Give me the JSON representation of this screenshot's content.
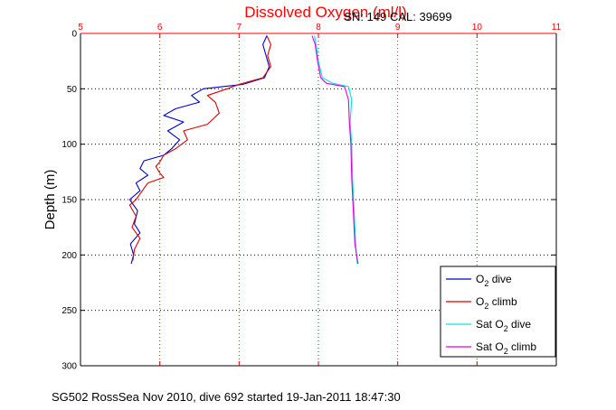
{
  "chart_data": {
    "type": "line",
    "title": "Dissolved Oxygen (ml/l)",
    "subtitle": "SN: 149  CAL: 39699",
    "ylabel": "Depth (m)",
    "footer": "SG502 RossSea Nov 2010, dive 692 started 19-Jan-2011 18:47:30",
    "xlim": [
      5,
      11
    ],
    "ylim": [
      0,
      300
    ],
    "y_reversed": true,
    "x_ticks": [
      "5",
      "6",
      "7",
      "8",
      "9",
      "10",
      "11"
    ],
    "y_ticks": [
      "0",
      "50",
      "100",
      "150",
      "200",
      "250",
      "300"
    ],
    "x_axis_position": "top",
    "grid": true,
    "legend_position": "bottom-right",
    "colors": {
      "title": "#ff0000",
      "x_axis": "#ff0000",
      "y_axis": "#000000",
      "grid": "#ff0000"
    },
    "series": [
      {
        "name": "O2 dive",
        "label_main": "O",
        "label_sub": "2",
        "label_suffix": " dive",
        "color": "#0000cc",
        "points": [
          [
            7.35,
            2
          ],
          [
            7.3,
            10
          ],
          [
            7.34,
            20
          ],
          [
            7.38,
            30
          ],
          [
            7.32,
            40
          ],
          [
            7.05,
            46
          ],
          [
            6.55,
            50
          ],
          [
            6.4,
            56
          ],
          [
            6.5,
            62
          ],
          [
            6.2,
            68
          ],
          [
            6.05,
            74
          ],
          [
            6.3,
            80
          ],
          [
            6.1,
            88
          ],
          [
            6.25,
            96
          ],
          [
            6.15,
            104
          ],
          [
            6.05,
            110
          ],
          [
            5.8,
            115
          ],
          [
            5.75,
            122
          ],
          [
            5.85,
            128
          ],
          [
            5.7,
            135
          ],
          [
            5.75,
            142
          ],
          [
            5.62,
            150
          ],
          [
            5.72,
            160
          ],
          [
            5.68,
            172
          ],
          [
            5.75,
            180
          ],
          [
            5.63,
            190
          ],
          [
            5.67,
            200
          ],
          [
            5.64,
            208
          ]
        ]
      },
      {
        "name": "O2 climb",
        "label_main": "O",
        "label_sub": "2",
        "label_suffix": " climb",
        "color": "#dd0000",
        "points": [
          [
            7.35,
            2
          ],
          [
            7.4,
            10
          ],
          [
            7.36,
            20
          ],
          [
            7.4,
            30
          ],
          [
            7.3,
            40
          ],
          [
            7.0,
            46
          ],
          [
            6.85,
            50
          ],
          [
            6.6,
            56
          ],
          [
            6.7,
            62
          ],
          [
            6.75,
            72
          ],
          [
            6.6,
            82
          ],
          [
            6.3,
            88
          ],
          [
            6.35,
            96
          ],
          [
            6.2,
            104
          ],
          [
            6.05,
            110
          ],
          [
            6.0,
            116
          ],
          [
            5.95,
            120
          ],
          [
            6.0,
            126
          ],
          [
            6.05,
            130
          ],
          [
            5.85,
            135
          ],
          [
            5.8,
            140
          ],
          [
            5.7,
            150
          ],
          [
            5.62,
            155
          ],
          [
            5.7,
            165
          ],
          [
            5.65,
            175
          ],
          [
            5.75,
            185
          ],
          [
            5.68,
            195
          ],
          [
            5.66,
            205
          ]
        ]
      },
      {
        "name": "Sat O2 dive",
        "label_main": "Sat O",
        "label_sub": "2",
        "label_suffix": " dive",
        "color": "#00e5e5",
        "points": [
          [
            7.95,
            2
          ],
          [
            7.97,
            10
          ],
          [
            8.0,
            25
          ],
          [
            8.05,
            40
          ],
          [
            8.18,
            45
          ],
          [
            8.38,
            48
          ],
          [
            8.42,
            60
          ],
          [
            8.4,
            80
          ],
          [
            8.42,
            100
          ],
          [
            8.43,
            130
          ],
          [
            8.45,
            160
          ],
          [
            8.47,
            190
          ],
          [
            8.49,
            208
          ]
        ]
      },
      {
        "name": "Sat O2 climb",
        "label_main": "Sat O",
        "label_sub": "2",
        "label_suffix": " climb",
        "color": "#e000e0",
        "points": [
          [
            7.92,
            2
          ],
          [
            7.96,
            10
          ],
          [
            7.99,
            25
          ],
          [
            8.03,
            40
          ],
          [
            8.1,
            45
          ],
          [
            8.33,
            48
          ],
          [
            8.38,
            60
          ],
          [
            8.39,
            80
          ],
          [
            8.41,
            100
          ],
          [
            8.42,
            130
          ],
          [
            8.44,
            160
          ],
          [
            8.46,
            190
          ],
          [
            8.5,
            208
          ]
        ]
      }
    ]
  }
}
